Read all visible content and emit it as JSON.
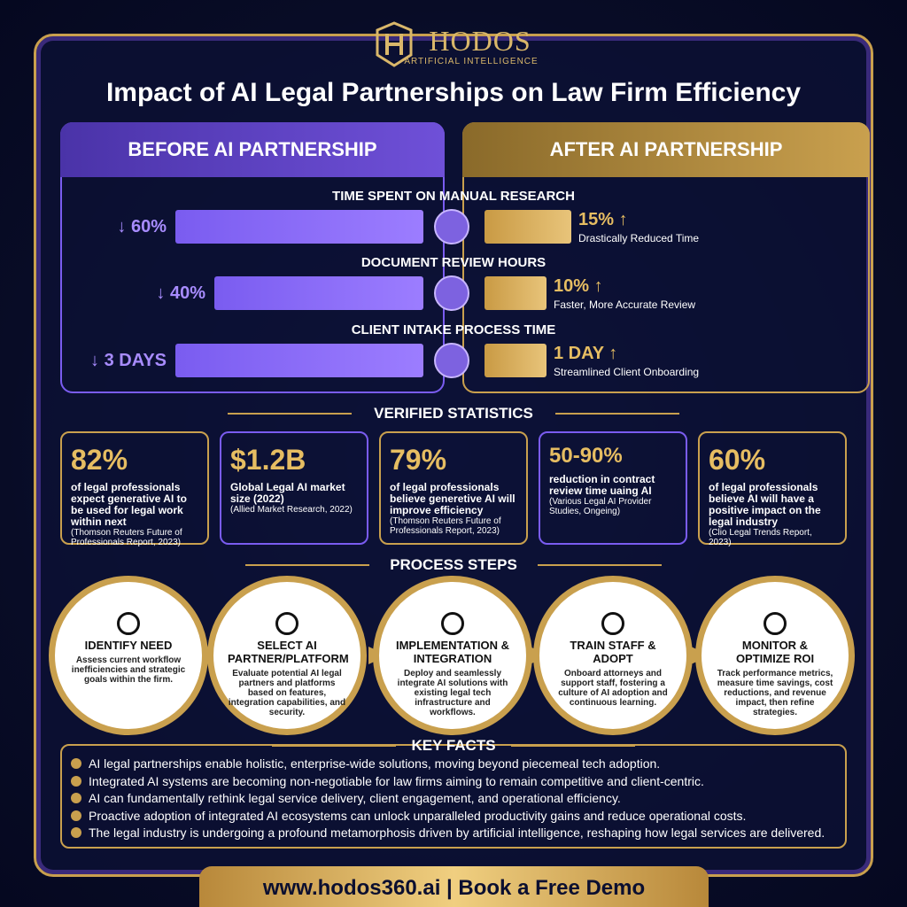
{
  "header": {
    "brand": "HODOS",
    "tagline": "ARTIFICIAL INTELLIGENCE",
    "title": "Impact of AI Legal Partnerships on Law Firm Efficiency"
  },
  "comparison": {
    "before_label": "BEFORE AI PARTNERSHIP",
    "after_label": "AFTER AI PARTNERSHIP",
    "metrics": [
      {
        "title": "TIME SPENT ON MANUAL RESEARCH",
        "before": "↓ 60%",
        "after": "15% ↑",
        "note": "Drastically Reduced Time"
      },
      {
        "title": "DOCUMENT REVIEW HOURS",
        "before": "↓ 40%",
        "after": "10% ↑",
        "note": "Faster, More Accurate Review"
      },
      {
        "title": "CLIENT INTAKE PROCESS TIME",
        "before": "↓ 3 DAYS",
        "after": "1 DAY ↑",
        "note": "Streamlined Client Onboarding"
      }
    ]
  },
  "statistics": {
    "heading": "VERIFIED STATISTICS",
    "items": [
      {
        "value": "82%",
        "text": "of legal professionals expect generative AI to be used for legal work within next",
        "source": "(Thomson Reuters Future of Professionals Report, 2023)"
      },
      {
        "value": "$1.2B",
        "text": "Global Legal AI market size (2022)",
        "source": "(Allied Market Research, 2022)"
      },
      {
        "value": "79%",
        "text": "of legal professionals believe generetive AI will improve efficiency",
        "source": "(Thomson Reuters Future of Professionals Report, 2023)"
      },
      {
        "value": "50-90%",
        "text": "reduction in contract review time uaing AI",
        "source": "(Various Legal AI Provider Studies, Ongeing)"
      },
      {
        "value": "60%",
        "text": "of legal professionals believe AI will have a positive impact on the legal industry",
        "source": "(Clio Legal Trends Report, 2023)"
      }
    ]
  },
  "process": {
    "heading": "PROCESS STEPS",
    "steps": [
      {
        "title": "IDENTIFY NEED",
        "text": "Assess current workflow inefficiencies and strategic goals within the firm."
      },
      {
        "title": "SELECT AI PARTNER/PLATFORM",
        "text": "Evaluate potential AI legal partners and platforms based on features, integration capabilities, and security."
      },
      {
        "title": "IMPLEMENTATION & INTEGRATION",
        "text": "Deploy and seamlessly integrate AI solutions with existing legal tech infrastructure and workflows."
      },
      {
        "title": "TRAIN STAFF & ADOPT",
        "text": "Onboard attorneys and support staff, fostering a culture of AI adoption and continuous learning."
      },
      {
        "title": "MONITOR & OPTIMIZE ROI",
        "text": "Track performance metrics, measure time savings, cost reductions, and revenue impact, then refine strategies."
      }
    ]
  },
  "key_facts": {
    "heading": "KEY FACTS",
    "items": [
      "AI legal partnerships enable holistic, enterprise-wide solutions, moving beyond piecemeal tech adoption.",
      "Integrated AI systems are becoming non-negotiable for law firms aiming to remain competitive and client-centric.",
      "AI can fundamentally rethink legal service delivery, client engagement, and operational efficiency.",
      "Proactive adoption of integrated AI ecosystems can unlock unparalleled productivity gains and reduce operational costs.",
      "The legal industry is undergoing a profound metamorphosis driven by artificial intelligence, reshaping how legal services are delivered."
    ]
  },
  "footer": "www.hodos360.ai | Book a Free Demo"
}
